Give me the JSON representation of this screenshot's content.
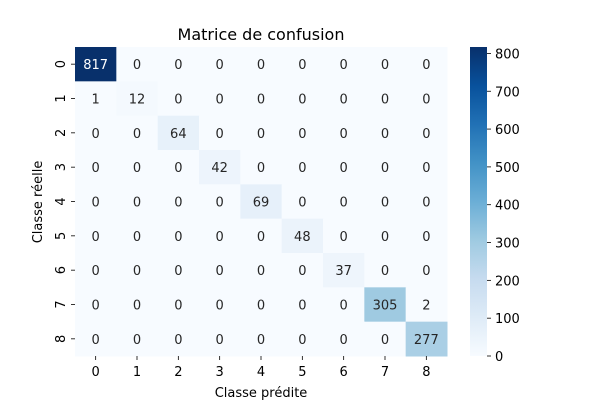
{
  "chart_data": {
    "type": "heatmap",
    "title": "Matrice de confusion",
    "xlabel": "Classe prédite",
    "ylabel": "Classe réelle",
    "x_categories": [
      "0",
      "1",
      "2",
      "3",
      "4",
      "5",
      "6",
      "7",
      "8"
    ],
    "y_categories": [
      "0",
      "1",
      "2",
      "3",
      "4",
      "5",
      "6",
      "7",
      "8"
    ],
    "values": [
      [
        817,
        0,
        0,
        0,
        0,
        0,
        0,
        0,
        0
      ],
      [
        1,
        12,
        0,
        0,
        0,
        0,
        0,
        0,
        0
      ],
      [
        0,
        0,
        64,
        0,
        0,
        0,
        0,
        0,
        0
      ],
      [
        0,
        0,
        0,
        42,
        0,
        0,
        0,
        0,
        0
      ],
      [
        0,
        0,
        0,
        0,
        69,
        0,
        0,
        0,
        0
      ],
      [
        0,
        0,
        0,
        0,
        0,
        48,
        0,
        0,
        0
      ],
      [
        0,
        0,
        0,
        0,
        0,
        0,
        37,
        0,
        0
      ],
      [
        0,
        0,
        0,
        0,
        0,
        0,
        0,
        305,
        2
      ],
      [
        0,
        0,
        0,
        0,
        0,
        0,
        0,
        0,
        277
      ]
    ],
    "colorbar": {
      "colormap": "Blues",
      "range": [
        0,
        817
      ],
      "ticks": [
        0,
        100,
        200,
        300,
        400,
        500,
        600,
        700,
        800
      ]
    },
    "grid": false,
    "annotations": "cell values shown"
  }
}
